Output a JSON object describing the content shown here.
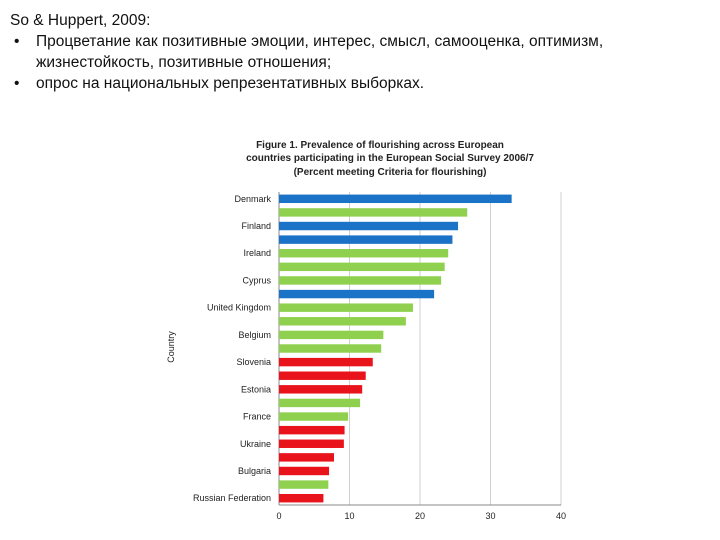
{
  "slide": {
    "heading": "So & Huppert, 2009:",
    "bullet_symbol": "•",
    "bullets": [
      {
        "line1": "Процветание как позитивные эмоции, интерес, смысл, самооценка, оптимизм,",
        "line2": "жизнестойкость, позитивные отношения;"
      },
      {
        "line1": "опрос на национальных репрезентативных выборках.",
        "line2": ""
      }
    ]
  },
  "chart_data": {
    "type": "bar",
    "orientation": "horizontal",
    "title_lines": [
      "Figure 1. Prevalence of flourishing across European",
      "countries participating in the European Social Survey 2006/7",
      "(Percent meeting Criteria for flourishing)"
    ],
    "ylabel": "Country",
    "xlabel": "",
    "xlim": [
      0,
      40
    ],
    "xticks": [
      0,
      10,
      20,
      30,
      40
    ],
    "grid": true,
    "colors": {
      "blue": "#1a73c6",
      "green": "#8fd14f",
      "red": "#e8131b"
    },
    "bars": [
      {
        "label": "Denmark",
        "value": 33,
        "color": "blue"
      },
      {
        "label": "",
        "value": 26.7,
        "color": "green"
      },
      {
        "label": "Finland",
        "value": 25.4,
        "color": "blue"
      },
      {
        "label": "",
        "value": 24.6,
        "color": "blue"
      },
      {
        "label": "Ireland",
        "value": 24.0,
        "color": "green"
      },
      {
        "label": "",
        "value": 23.5,
        "color": "green"
      },
      {
        "label": "Cyprus",
        "value": 23.0,
        "color": "green"
      },
      {
        "label": "",
        "value": 22.0,
        "color": "blue"
      },
      {
        "label": "United Kingdom",
        "value": 19.0,
        "color": "green"
      },
      {
        "label": "",
        "value": 18.0,
        "color": "green"
      },
      {
        "label": "Belgium",
        "value": 14.8,
        "color": "green"
      },
      {
        "label": "",
        "value": 14.5,
        "color": "green"
      },
      {
        "label": "Slovenia",
        "value": 13.3,
        "color": "red"
      },
      {
        "label": "",
        "value": 12.3,
        "color": "red"
      },
      {
        "label": "Estonia",
        "value": 11.8,
        "color": "red"
      },
      {
        "label": "",
        "value": 11.5,
        "color": "green"
      },
      {
        "label": "France",
        "value": 9.8,
        "color": "green"
      },
      {
        "label": "",
        "value": 9.3,
        "color": "red"
      },
      {
        "label": "Ukraine",
        "value": 9.2,
        "color": "red"
      },
      {
        "label": "",
        "value": 7.8,
        "color": "red"
      },
      {
        "label": "Bulgaria",
        "value": 7.1,
        "color": "red"
      },
      {
        "label": "",
        "value": 7.0,
        "color": "green"
      },
      {
        "label": "Russian Federation",
        "value": 6.3,
        "color": "red"
      }
    ]
  }
}
